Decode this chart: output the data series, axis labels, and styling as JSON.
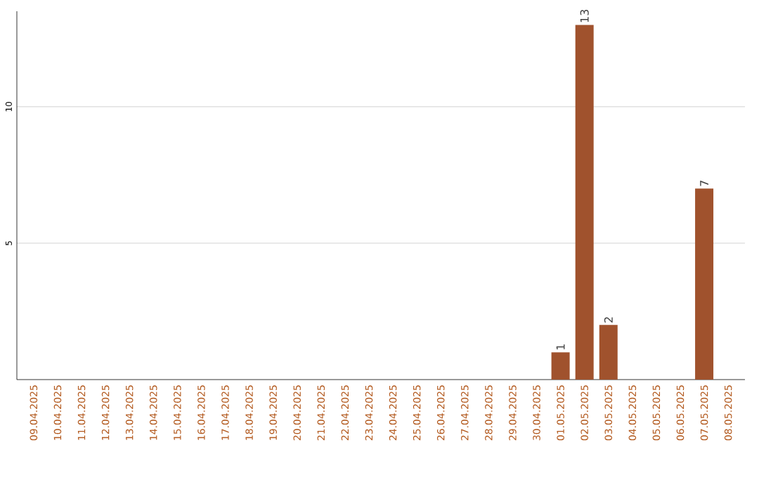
{
  "chart_data": {
    "type": "bar",
    "categories": [
      "09.04.2025",
      "10.04.2025",
      "11.04.2025",
      "12.04.2025",
      "13.04.2025",
      "14.04.2025",
      "15.04.2025",
      "16.04.2025",
      "17.04.2025",
      "18.04.2025",
      "19.04.2025",
      "20.04.2025",
      "21.04.2025",
      "22.04.2025",
      "23.04.2025",
      "24.04.2025",
      "25.04.2025",
      "26.04.2025",
      "27.04.2025",
      "28.04.2025",
      "29.04.2025",
      "30.04.2025",
      "01.05.2025",
      "02.05.2025",
      "03.05.2025",
      "04.05.2025",
      "05.05.2025",
      "06.05.2025",
      "07.05.2025",
      "08.05.2025"
    ],
    "values": [
      0,
      0,
      0,
      0,
      0,
      0,
      0,
      0,
      0,
      0,
      0,
      0,
      0,
      0,
      0,
      0,
      0,
      0,
      0,
      0,
      0,
      0,
      1,
      13,
      2,
      0,
      0,
      0,
      7,
      0
    ],
    "value_labels": [
      null,
      null,
      null,
      null,
      null,
      null,
      null,
      null,
      null,
      null,
      null,
      null,
      null,
      null,
      null,
      null,
      null,
      null,
      null,
      null,
      null,
      null,
      "1",
      "13",
      "2",
      null,
      null,
      null,
      "7",
      null
    ],
    "color": "#a0522d",
    "ylim": [
      0,
      13.5
    ],
    "yticks": [
      5,
      10
    ],
    "grid": "y"
  }
}
